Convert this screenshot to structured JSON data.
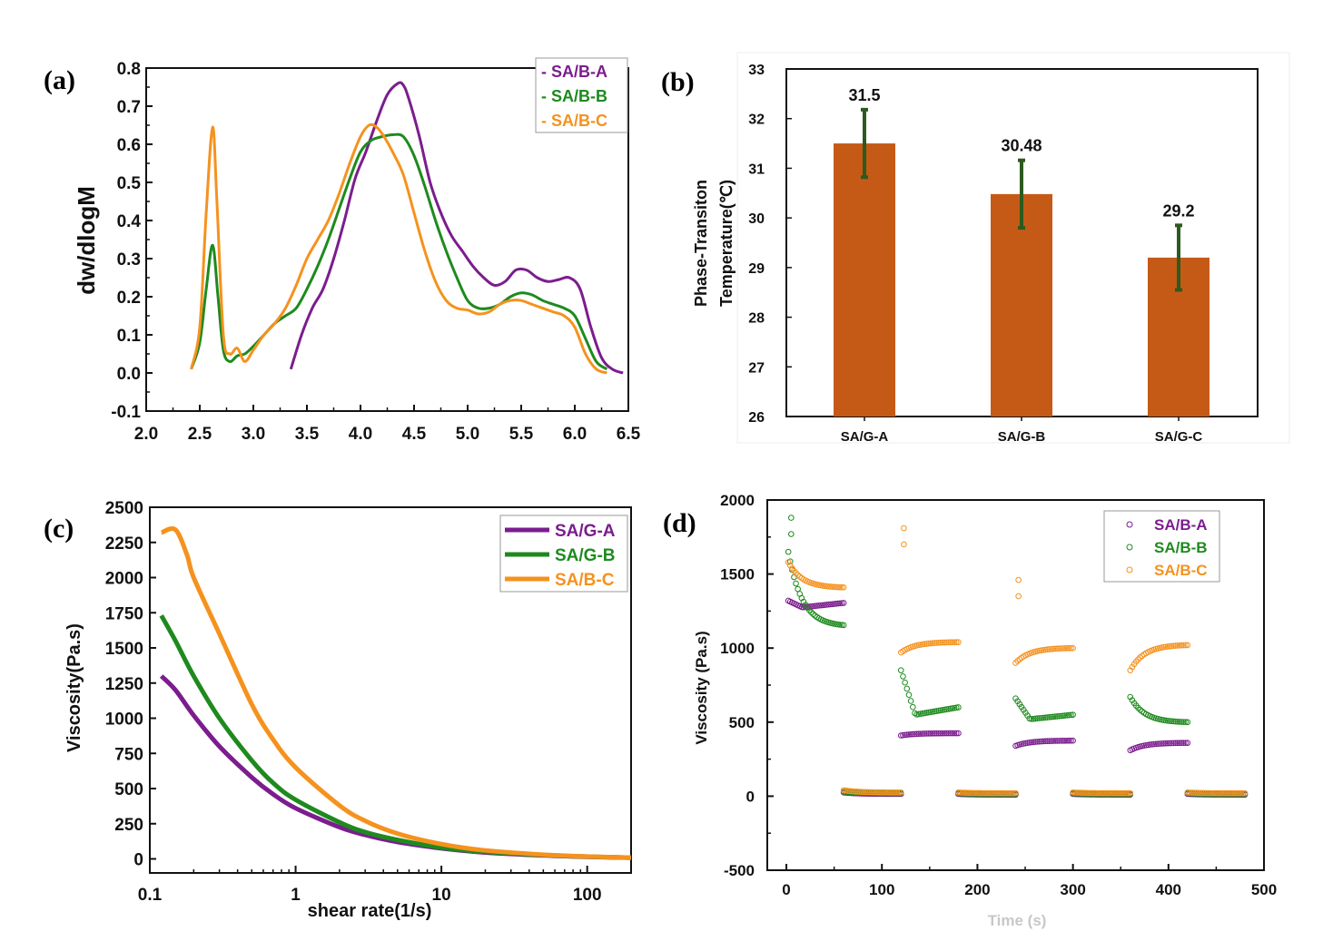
{
  "colors": {
    "A": "#7b1d8e",
    "B": "#1e8a1e",
    "C": "#f5921e",
    "bar": "#c55a16",
    "err": "#2d5a1e"
  },
  "chart_data": [
    {
      "panel": "(a)",
      "type": "line",
      "xlabel": "",
      "ylabel": "dw/dlogM",
      "xlim": [
        2.0,
        6.5
      ],
      "ylim": [
        -0.1,
        0.8
      ],
      "xticks": [
        "2.0",
        "2.5",
        "3.0",
        "3.5",
        "4.0",
        "4.5",
        "5.0",
        "5.5",
        "6.0",
        "6.5"
      ],
      "yticks": [
        "-0.1",
        "0.0",
        "0.1",
        "0.2",
        "0.3",
        "0.4",
        "0.5",
        "0.6",
        "0.7",
        "0.8"
      ],
      "legend": "top-right",
      "series": [
        {
          "name": "SA/B-A",
          "key": "A",
          "legend_label": "- SA/B-A",
          "x": [
            3.35,
            3.45,
            3.55,
            3.65,
            3.75,
            3.85,
            3.95,
            4.05,
            4.15,
            4.25,
            4.35,
            4.4,
            4.45,
            4.55,
            4.65,
            4.75,
            4.85,
            4.95,
            5.05,
            5.15,
            5.25,
            5.35,
            5.45,
            5.55,
            5.65,
            5.75,
            5.85,
            5.95,
            6.05,
            6.15,
            6.25,
            6.35,
            6.45
          ],
          "y": [
            0.01,
            0.1,
            0.17,
            0.22,
            0.3,
            0.4,
            0.51,
            0.58,
            0.66,
            0.73,
            0.76,
            0.755,
            0.72,
            0.62,
            0.5,
            0.42,
            0.36,
            0.32,
            0.28,
            0.25,
            0.23,
            0.24,
            0.27,
            0.27,
            0.25,
            0.24,
            0.245,
            0.25,
            0.22,
            0.12,
            0.04,
            0.01,
            0.0
          ]
        },
        {
          "name": "SA/B-B",
          "key": "B",
          "legend_label": "- SA/B-B",
          "x": [
            2.42,
            2.5,
            2.56,
            2.62,
            2.67,
            2.72,
            2.78,
            2.85,
            2.92,
            3.0,
            3.1,
            3.2,
            3.3,
            3.4,
            3.5,
            3.6,
            3.7,
            3.8,
            3.9,
            4.0,
            4.1,
            4.2,
            4.3,
            4.4,
            4.5,
            4.6,
            4.7,
            4.8,
            4.9,
            5.0,
            5.1,
            5.2,
            5.3,
            5.4,
            5.5,
            5.6,
            5.7,
            5.8,
            5.9,
            6.0,
            6.1,
            6.2,
            6.3
          ],
          "y": [
            0.01,
            0.08,
            0.22,
            0.335,
            0.2,
            0.06,
            0.03,
            0.045,
            0.05,
            0.07,
            0.1,
            0.13,
            0.15,
            0.17,
            0.22,
            0.28,
            0.35,
            0.43,
            0.51,
            0.58,
            0.61,
            0.62,
            0.625,
            0.62,
            0.57,
            0.49,
            0.4,
            0.32,
            0.25,
            0.19,
            0.17,
            0.17,
            0.18,
            0.2,
            0.21,
            0.205,
            0.19,
            0.18,
            0.17,
            0.15,
            0.09,
            0.03,
            0.01
          ]
        },
        {
          "name": "SA/B-C",
          "key": "C",
          "legend_label": "- SA/B-C",
          "x": [
            2.42,
            2.5,
            2.56,
            2.62,
            2.66,
            2.72,
            2.78,
            2.85,
            2.92,
            3.0,
            3.1,
            3.2,
            3.3,
            3.4,
            3.5,
            3.6,
            3.7,
            3.8,
            3.9,
            4.0,
            4.08,
            4.15,
            4.22,
            4.3,
            4.4,
            4.5,
            4.6,
            4.7,
            4.8,
            4.9,
            5.0,
            5.1,
            5.2,
            5.3,
            5.4,
            5.5,
            5.6,
            5.7,
            5.8,
            5.9,
            6.0,
            6.1,
            6.2,
            6.3
          ],
          "y": [
            0.01,
            0.12,
            0.42,
            0.645,
            0.45,
            0.1,
            0.05,
            0.065,
            0.03,
            0.06,
            0.1,
            0.13,
            0.17,
            0.23,
            0.3,
            0.35,
            0.4,
            0.47,
            0.55,
            0.62,
            0.65,
            0.645,
            0.62,
            0.58,
            0.52,
            0.42,
            0.32,
            0.24,
            0.19,
            0.17,
            0.165,
            0.155,
            0.16,
            0.18,
            0.19,
            0.19,
            0.18,
            0.17,
            0.16,
            0.15,
            0.12,
            0.05,
            0.01,
            0.0
          ]
        }
      ]
    },
    {
      "panel": "(b)",
      "type": "bar",
      "ylabel_line1": "Phase-Transiton",
      "ylabel_line2": "Temperature(℃)",
      "ylim": [
        26,
        33
      ],
      "yticks": [
        "26",
        "27",
        "28",
        "29",
        "30",
        "31",
        "32",
        "33"
      ],
      "categories": [
        "SA/G-A",
        "SA/G-B",
        "SA/G-C"
      ],
      "values": [
        31.5,
        30.48,
        29.2
      ],
      "value_labels": [
        "31.5",
        "30.48",
        "29.2"
      ],
      "errors": [
        0.68,
        0.68,
        0.65
      ]
    },
    {
      "panel": "(c)",
      "type": "line",
      "xlabel": "shear rate(1/s)",
      "ylabel": "Viscosity(Pa.s)",
      "xscale": "log",
      "xlim": [
        0.1,
        200
      ],
      "ylim": [
        -100,
        2500
      ],
      "xticks": [
        {
          "v": 0.1,
          "label": "0.1"
        },
        {
          "v": 1,
          "label": "1"
        },
        {
          "v": 10,
          "label": "10"
        },
        {
          "v": 100,
          "label": "100"
        }
      ],
      "yticks": [
        "0",
        "250",
        "500",
        "750",
        "1000",
        "1250",
        "1500",
        "1750",
        "2000",
        "2250",
        "2500"
      ],
      "legend": "top-right",
      "series": [
        {
          "name": "SA/G-A",
          "key": "A",
          "x": [
            0.12,
            0.15,
            0.2,
            0.3,
            0.5,
            0.7,
            1,
            2,
            3,
            5,
            10,
            20,
            50,
            100,
            200
          ],
          "y": [
            1300,
            1200,
            1020,
            800,
            580,
            460,
            360,
            225,
            170,
            120,
            75,
            45,
            25,
            15,
            8
          ]
        },
        {
          "name": "SA/G-B",
          "key": "B",
          "x": [
            0.12,
            0.15,
            0.2,
            0.3,
            0.5,
            0.7,
            1,
            2,
            3,
            5,
            10,
            20,
            50,
            100,
            200
          ],
          "y": [
            1730,
            1550,
            1300,
            1000,
            700,
            540,
            420,
            260,
            190,
            135,
            80,
            50,
            27,
            16,
            9
          ]
        },
        {
          "name": "SA/B-C",
          "key": "C",
          "x": [
            0.12,
            0.15,
            0.18,
            0.2,
            0.3,
            0.5,
            0.7,
            1,
            2,
            3,
            5,
            10,
            20,
            50,
            100,
            200
          ],
          "y": [
            2320,
            2340,
            2160,
            2000,
            1600,
            1100,
            850,
            650,
            380,
            270,
            180,
            105,
            60,
            30,
            17,
            9
          ]
        }
      ]
    },
    {
      "panel": "(d)",
      "type": "scatter",
      "xlabel": "Time (s)",
      "ylabel": "Viscosity (Pa.s)",
      "xlim": [
        -20,
        500
      ],
      "ylim": [
        -500,
        2000
      ],
      "xticks": [
        "0",
        "100",
        "200",
        "300",
        "400",
        "500"
      ],
      "yticks": [
        "-500",
        "0",
        "500",
        "1000",
        "1500",
        "2000"
      ],
      "legend": "top-right",
      "series": [
        {
          "name": "SA/B-A",
          "key": "A",
          "segments": [
            {
              "t": [
                2,
                60
              ],
              "start": 1320,
              "end": 1305,
              "dip": 1275
            },
            {
              "t": [
                120,
                180
              ],
              "start": 410,
              "end": 425
            },
            {
              "t": [
                240,
                300
              ],
              "start": 340,
              "end": 375
            },
            {
              "t": [
                360,
                420
              ],
              "start": 310,
              "end": 360
            },
            {
              "t": [
                60,
                120
              ],
              "start": 25,
              "end": 15
            },
            {
              "t": [
                180,
                240
              ],
              "start": 15,
              "end": 10
            },
            {
              "t": [
                300,
                360
              ],
              "start": 15,
              "end": 10
            },
            {
              "t": [
                420,
                480
              ],
              "start": 15,
              "end": 10
            }
          ]
        },
        {
          "name": "SA/B-B",
          "key": "B",
          "segments": [
            {
              "t": [
                2,
                60
              ],
              "start": 1650,
              "end": 1155,
              "spike": 1880
            },
            {
              "t": [
                120,
                180
              ],
              "start": 850,
              "end": 600,
              "dip": 550
            },
            {
              "t": [
                240,
                300
              ],
              "start": 660,
              "end": 550,
              "dip": 520
            },
            {
              "t": [
                360,
                420
              ],
              "start": 670,
              "end": 500
            },
            {
              "t": [
                60,
                120
              ],
              "start": 30,
              "end": 20
            },
            {
              "t": [
                180,
                240
              ],
              "start": 20,
              "end": 15
            },
            {
              "t": [
                300,
                360
              ],
              "start": 20,
              "end": 15
            },
            {
              "t": [
                420,
                480
              ],
              "start": 20,
              "end": 15
            }
          ]
        },
        {
          "name": "SA/B-C",
          "key": "C",
          "segments": [
            {
              "t": [
                2,
                60
              ],
              "start": 1580,
              "end": 1410
            },
            {
              "t": [
                120,
                180
              ],
              "start": 970,
              "end": 1040,
              "spike": 1810
            },
            {
              "t": [
                240,
                300
              ],
              "start": 900,
              "end": 1000,
              "spike": 1460
            },
            {
              "t": [
                360,
                420
              ],
              "start": 850,
              "end": 1020
            },
            {
              "t": [
                60,
                120
              ],
              "start": 40,
              "end": 25
            },
            {
              "t": [
                180,
                240
              ],
              "start": 25,
              "end": 20
            },
            {
              "t": [
                300,
                360
              ],
              "start": 25,
              "end": 20
            },
            {
              "t": [
                420,
                480
              ],
              "start": 25,
              "end": 20
            }
          ]
        }
      ]
    }
  ]
}
